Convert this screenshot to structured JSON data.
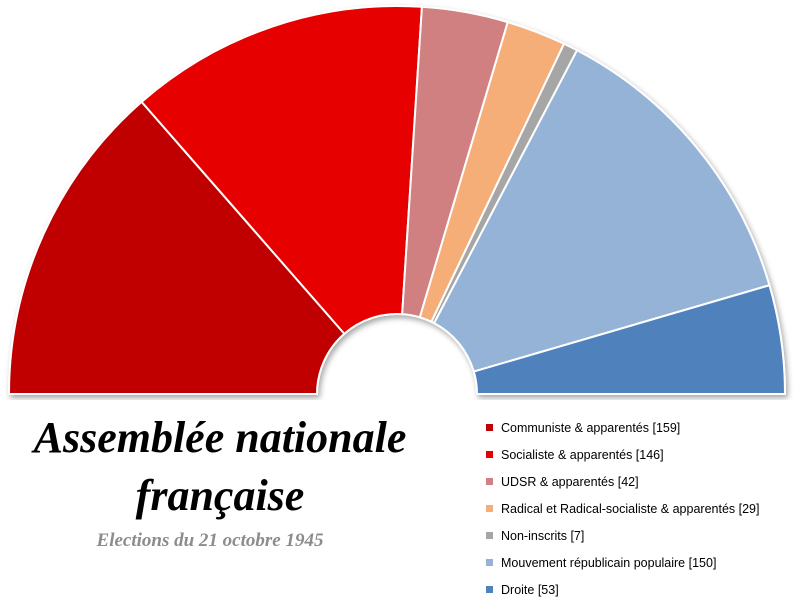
{
  "title_line1": "Assemblée nationale",
  "title_line2": "française",
  "subtitle": "Elections du 21 octobre 1945",
  "chart_data": {
    "type": "pie",
    "layout": "semicircle (hemicycle)",
    "legend_position": "bottom-right",
    "categories": [
      "Communiste & apparentés",
      "Socialiste & apparentés",
      "UDSR & apparentés",
      "Radical et Radical-socialiste & apparentés",
      "Non-inscrits",
      "Mouvement républicain populaire",
      "Droite"
    ],
    "values": [
      159,
      146,
      42,
      29,
      7,
      150,
      53
    ],
    "colors": [
      "#c00000",
      "#e60000",
      "#d08080",
      "#f5ae78",
      "#a6a6a6",
      "#95b3d7",
      "#4f81bd"
    ],
    "legend_labels": [
      "Communiste & apparentés [159]",
      "Socialiste & apparentés [146]",
      "UDSR & apparentés [42]",
      "Radical et Radical-socialiste & apparentés [29]",
      "Non-inscrits [7]",
      "Mouvement républicain populaire [150]",
      "Droite [53]"
    ]
  }
}
